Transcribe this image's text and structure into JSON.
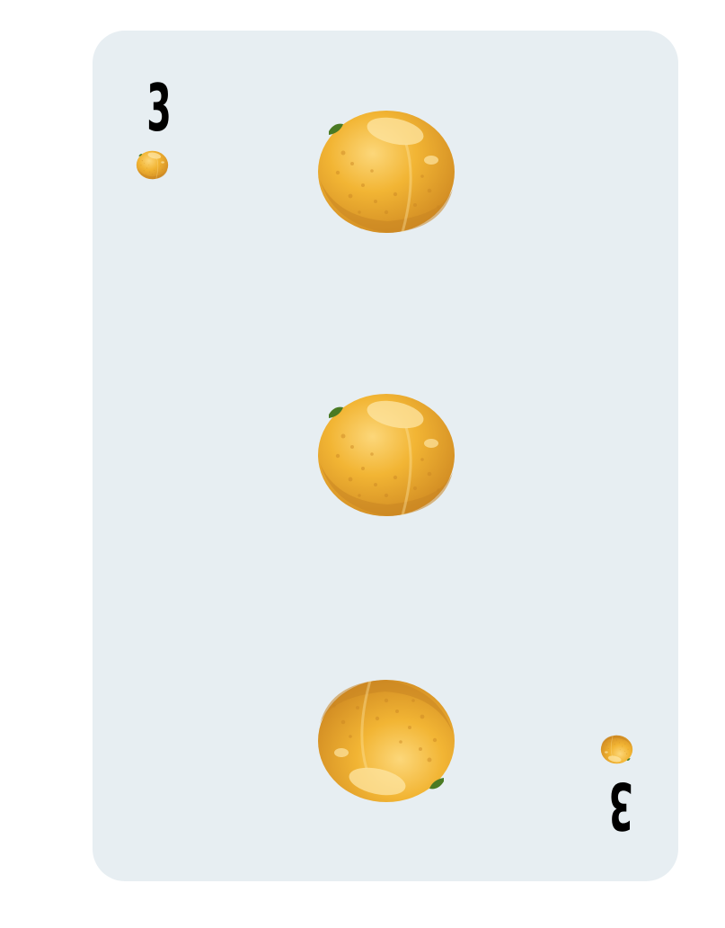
{
  "card": {
    "rank": "3",
    "suit": "orange",
    "pip_count": 3,
    "colors": {
      "card_face": "#e7eef2",
      "rank_text": "#000000",
      "fruit_main": "#f2b534",
      "fruit_shade": "#d9942a",
      "fruit_highlight": "#fcd77a",
      "stem": "#4a7a23"
    },
    "icon": "orange-fruit-icon"
  }
}
